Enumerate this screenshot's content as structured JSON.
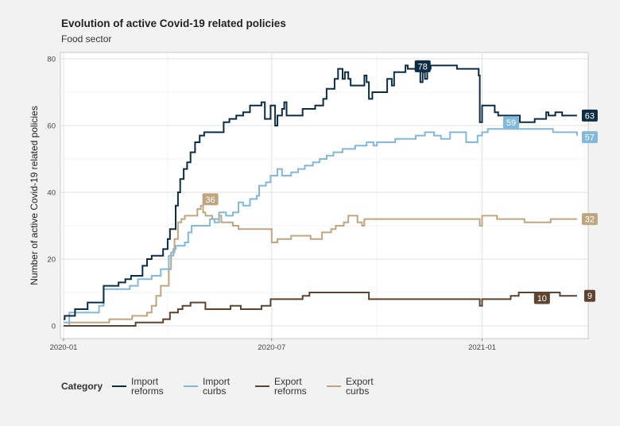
{
  "header": {
    "title": "Evolution of active Covid-19 related policies",
    "subtitle": "Food sector"
  },
  "legend": {
    "title": "Category",
    "items": [
      {
        "line1": "Import",
        "line2": "reforms",
        "color": "#0d2d45"
      },
      {
        "line1": "Import",
        "line2": "curbs",
        "color": "#82b8d9"
      },
      {
        "line1": "Export",
        "line2": "reforms",
        "color": "#5e4330"
      },
      {
        "line1": "Export",
        "line2": "curbs",
        "color": "#bfa680"
      }
    ]
  },
  "chart_data": {
    "type": "line",
    "title": "Evolution of active Covid-19 related policies",
    "subtitle": "Food sector",
    "xlabel": "",
    "ylabel": "Number of active Covid-19 related policies",
    "x_ticks": [
      "2020-01",
      "2020-07",
      "2021-01"
    ],
    "x_range": [
      "2020-01-01",
      "2021-04-01"
    ],
    "ylim": [
      0,
      80
    ],
    "y_ticks": [
      0,
      20,
      40,
      60,
      80
    ],
    "grid": true,
    "legend_position": "bottom",
    "series": [
      {
        "name": "Import reforms",
        "color": "#0d2d45",
        "points": [
          [
            "2020-01-01",
            2
          ],
          [
            "2020-01-02",
            3
          ],
          [
            "2020-01-10",
            3
          ],
          [
            "2020-01-11",
            5
          ],
          [
            "2020-01-20",
            5
          ],
          [
            "2020-01-22",
            7
          ],
          [
            "2020-02-04",
            7
          ],
          [
            "2020-02-05",
            12
          ],
          [
            "2020-02-15",
            12
          ],
          [
            "2020-02-18",
            13
          ],
          [
            "2020-02-24",
            14
          ],
          [
            "2020-02-29",
            15
          ],
          [
            "2020-03-08",
            15
          ],
          [
            "2020-03-10",
            18
          ],
          [
            "2020-03-14",
            20
          ],
          [
            "2020-03-18",
            21
          ],
          [
            "2020-03-26",
            21
          ],
          [
            "2020-03-28",
            23
          ],
          [
            "2020-04-01",
            26
          ],
          [
            "2020-04-03",
            29
          ],
          [
            "2020-04-06",
            29
          ],
          [
            "2020-04-08",
            36
          ],
          [
            "2020-04-10",
            40
          ],
          [
            "2020-04-12",
            44
          ],
          [
            "2020-04-15",
            47
          ],
          [
            "2020-04-18",
            49
          ],
          [
            "2020-04-21",
            52
          ],
          [
            "2020-04-25",
            55
          ],
          [
            "2020-04-29",
            57
          ],
          [
            "2020-05-03",
            58
          ],
          [
            "2020-05-18",
            58
          ],
          [
            "2020-05-20",
            61
          ],
          [
            "2020-05-25",
            62
          ],
          [
            "2020-05-31",
            63
          ],
          [
            "2020-06-06",
            64
          ],
          [
            "2020-06-12",
            66
          ],
          [
            "2020-06-20",
            66
          ],
          [
            "2020-06-22",
            67
          ],
          [
            "2020-06-25",
            62
          ],
          [
            "2020-06-28",
            62
          ],
          [
            "2020-06-30",
            66
          ],
          [
            "2020-07-04",
            60
          ],
          [
            "2020-07-06",
            63
          ],
          [
            "2020-07-10",
            65
          ],
          [
            "2020-07-12",
            67
          ],
          [
            "2020-07-14",
            63
          ],
          [
            "2020-07-26",
            63
          ],
          [
            "2020-07-28",
            65
          ],
          [
            "2020-08-05",
            65
          ],
          [
            "2020-08-08",
            66
          ],
          [
            "2020-08-12",
            66
          ],
          [
            "2020-08-15",
            68
          ],
          [
            "2020-08-18",
            71
          ],
          [
            "2020-08-22",
            71
          ],
          [
            "2020-08-25",
            74
          ],
          [
            "2020-08-28",
            77
          ],
          [
            "2020-09-01",
            74
          ],
          [
            "2020-09-03",
            76
          ],
          [
            "2020-09-06",
            74
          ],
          [
            "2020-09-08",
            72
          ],
          [
            "2020-09-18",
            72
          ],
          [
            "2020-09-20",
            75
          ],
          [
            "2020-09-22",
            73
          ],
          [
            "2020-09-24",
            68
          ],
          [
            "2020-09-27",
            70
          ],
          [
            "2020-10-08",
            70
          ],
          [
            "2020-10-10",
            74
          ],
          [
            "2020-10-14",
            72
          ],
          [
            "2020-10-16",
            76
          ],
          [
            "2020-10-23",
            76
          ],
          [
            "2020-10-26",
            78
          ],
          [
            "2020-10-28",
            77
          ],
          [
            "2020-11-06",
            77
          ],
          [
            "2020-11-08",
            73
          ],
          [
            "2020-11-10",
            76
          ],
          [
            "2020-11-12",
            74
          ],
          [
            "2020-11-14",
            77
          ],
          [
            "2020-11-17",
            78
          ],
          [
            "2020-12-08",
            78
          ],
          [
            "2020-12-10",
            77
          ],
          [
            "2020-12-28",
            77
          ],
          [
            "2020-12-29",
            75
          ],
          [
            "2020-12-30",
            61
          ],
          [
            "2021-01-01",
            66
          ],
          [
            "2021-01-10",
            66
          ],
          [
            "2021-01-12",
            64
          ],
          [
            "2021-01-15",
            63
          ],
          [
            "2021-02-01",
            63
          ],
          [
            "2021-02-03",
            61
          ],
          [
            "2021-02-14",
            61
          ],
          [
            "2021-02-16",
            62
          ],
          [
            "2021-02-24",
            62
          ],
          [
            "2021-02-26",
            64
          ],
          [
            "2021-02-28",
            63
          ],
          [
            "2021-03-04",
            63
          ],
          [
            "2021-03-06",
            64
          ],
          [
            "2021-03-12",
            63
          ],
          [
            "2021-03-25",
            63
          ]
        ],
        "end_label": 63
      },
      {
        "name": "Import curbs",
        "color": "#82b8d9",
        "points": [
          [
            "2020-01-01",
            1
          ],
          [
            "2020-01-04",
            1
          ],
          [
            "2020-01-06",
            4
          ],
          [
            "2020-01-28",
            4
          ],
          [
            "2020-02-01",
            6
          ],
          [
            "2020-02-05",
            11
          ],
          [
            "2020-02-26",
            11
          ],
          [
            "2020-02-28",
            12
          ],
          [
            "2020-03-04",
            12
          ],
          [
            "2020-03-06",
            14
          ],
          [
            "2020-03-16",
            14
          ],
          [
            "2020-03-18",
            15
          ],
          [
            "2020-03-24",
            15
          ],
          [
            "2020-03-26",
            17
          ],
          [
            "2020-03-28",
            17
          ],
          [
            "2020-04-02",
            21
          ],
          [
            "2020-04-06",
            23
          ],
          [
            "2020-04-08",
            24
          ],
          [
            "2020-04-16",
            25
          ],
          [
            "2020-04-19",
            28
          ],
          [
            "2020-04-22",
            30
          ],
          [
            "2020-05-06",
            30
          ],
          [
            "2020-05-08",
            32
          ],
          [
            "2020-05-12",
            31
          ],
          [
            "2020-05-16",
            34
          ],
          [
            "2020-05-22",
            33
          ],
          [
            "2020-05-28",
            34
          ],
          [
            "2020-06-02",
            37
          ],
          [
            "2020-06-06",
            36
          ],
          [
            "2020-06-12",
            38
          ],
          [
            "2020-06-18",
            39
          ],
          [
            "2020-06-20",
            42
          ],
          [
            "2020-06-26",
            43
          ],
          [
            "2020-06-30",
            45
          ],
          [
            "2020-07-06",
            47
          ],
          [
            "2020-07-10",
            45
          ],
          [
            "2020-07-18",
            46
          ],
          [
            "2020-07-24",
            47
          ],
          [
            "2020-07-30",
            48
          ],
          [
            "2020-08-06",
            49
          ],
          [
            "2020-08-12",
            50
          ],
          [
            "2020-08-18",
            51
          ],
          [
            "2020-08-24",
            52
          ],
          [
            "2020-09-01",
            53
          ],
          [
            "2020-09-12",
            54
          ],
          [
            "2020-09-22",
            55
          ],
          [
            "2020-09-28",
            54
          ],
          [
            "2020-10-01",
            55
          ],
          [
            "2020-10-14",
            55
          ],
          [
            "2020-10-17",
            56
          ],
          [
            "2020-11-01",
            56
          ],
          [
            "2020-11-04",
            57
          ],
          [
            "2020-11-10",
            57
          ],
          [
            "2020-11-12",
            58
          ],
          [
            "2020-11-20",
            57
          ],
          [
            "2020-11-26",
            56
          ],
          [
            "2020-12-04",
            58
          ],
          [
            "2020-12-16",
            58
          ],
          [
            "2020-12-18",
            55
          ],
          [
            "2020-12-26",
            55
          ],
          [
            "2020-12-28",
            57
          ],
          [
            "2021-01-01",
            58
          ],
          [
            "2021-01-06",
            59
          ],
          [
            "2021-03-01",
            59
          ],
          [
            "2021-03-04",
            58
          ],
          [
            "2021-03-22",
            58
          ],
          [
            "2021-03-25",
            57
          ]
        ],
        "end_label": 57,
        "annotation": {
          "x": "2021-01-18",
          "y": 59,
          "label": 59
        }
      },
      {
        "name": "Export reforms",
        "color": "#5e4330",
        "points": [
          [
            "2020-01-01",
            0
          ],
          [
            "2020-03-02",
            0
          ],
          [
            "2020-03-04",
            1
          ],
          [
            "2020-03-26",
            1
          ],
          [
            "2020-03-28",
            2
          ],
          [
            "2020-04-01",
            2
          ],
          [
            "2020-04-03",
            4
          ],
          [
            "2020-04-08",
            4
          ],
          [
            "2020-04-10",
            5
          ],
          [
            "2020-04-14",
            6
          ],
          [
            "2020-04-19",
            6
          ],
          [
            "2020-04-21",
            7
          ],
          [
            "2020-05-02",
            7
          ],
          [
            "2020-05-04",
            5
          ],
          [
            "2020-05-24",
            5
          ],
          [
            "2020-05-26",
            6
          ],
          [
            "2020-06-02",
            6
          ],
          [
            "2020-06-04",
            5
          ],
          [
            "2020-06-20",
            5
          ],
          [
            "2020-06-22",
            6
          ],
          [
            "2020-06-28",
            6
          ],
          [
            "2020-06-30",
            8
          ],
          [
            "2020-07-26",
            8
          ],
          [
            "2020-07-28",
            9
          ],
          [
            "2020-08-01",
            9
          ],
          [
            "2020-08-03",
            10
          ],
          [
            "2020-09-22",
            10
          ],
          [
            "2020-09-24",
            8
          ],
          [
            "2020-12-29",
            8
          ],
          [
            "2020-12-30",
            6
          ],
          [
            "2021-01-01",
            8
          ],
          [
            "2021-01-24",
            8
          ],
          [
            "2021-01-26",
            9
          ],
          [
            "2021-01-31",
            9
          ],
          [
            "2021-02-02",
            10
          ],
          [
            "2021-03-08",
            10
          ],
          [
            "2021-03-10",
            9
          ],
          [
            "2021-03-25",
            9
          ]
        ],
        "end_label": 9,
        "annotation": {
          "x": "2021-02-14",
          "y": 10,
          "label": 10
        }
      },
      {
        "name": "Export curbs",
        "color": "#bfa680",
        "points": [
          [
            "2020-01-01",
            0
          ],
          [
            "2020-01-04",
            0
          ],
          [
            "2020-01-06",
            1
          ],
          [
            "2020-02-08",
            1
          ],
          [
            "2020-02-10",
            2
          ],
          [
            "2020-02-28",
            2
          ],
          [
            "2020-03-01",
            3
          ],
          [
            "2020-03-12",
            3
          ],
          [
            "2020-03-14",
            4
          ],
          [
            "2020-03-18",
            6
          ],
          [
            "2020-03-22",
            9
          ],
          [
            "2020-03-26",
            12
          ],
          [
            "2020-03-28",
            12
          ],
          [
            "2020-04-02",
            17
          ],
          [
            "2020-04-04",
            22
          ],
          [
            "2020-04-07",
            26
          ],
          [
            "2020-04-10",
            31
          ],
          [
            "2020-04-13",
            32
          ],
          [
            "2020-04-16",
            33
          ],
          [
            "2020-04-24",
            33
          ],
          [
            "2020-04-27",
            35
          ],
          [
            "2020-04-30",
            36
          ],
          [
            "2020-05-02",
            34
          ],
          [
            "2020-05-04",
            33
          ],
          [
            "2020-05-10",
            32
          ],
          [
            "2020-05-16",
            33
          ],
          [
            "2020-05-18",
            31
          ],
          [
            "2020-05-26",
            31
          ],
          [
            "2020-05-28",
            30
          ],
          [
            "2020-06-02",
            29
          ],
          [
            "2020-06-30",
            29
          ],
          [
            "2020-07-01",
            25
          ],
          [
            "2020-07-06",
            26
          ],
          [
            "2020-07-16",
            26
          ],
          [
            "2020-07-18",
            27
          ],
          [
            "2020-08-02",
            27
          ],
          [
            "2020-08-04",
            26
          ],
          [
            "2020-08-12",
            26
          ],
          [
            "2020-08-14",
            28
          ],
          [
            "2020-08-20",
            28
          ],
          [
            "2020-08-22",
            29
          ],
          [
            "2020-08-26",
            30
          ],
          [
            "2020-09-02",
            31
          ],
          [
            "2020-09-06",
            33
          ],
          [
            "2020-09-12",
            33
          ],
          [
            "2020-09-14",
            31
          ],
          [
            "2020-09-18",
            30
          ],
          [
            "2020-09-20",
            32
          ],
          [
            "2020-12-28",
            32
          ],
          [
            "2020-12-30",
            30
          ],
          [
            "2021-01-01",
            33
          ],
          [
            "2021-01-12",
            33
          ],
          [
            "2021-01-14",
            32
          ],
          [
            "2021-02-05",
            32
          ],
          [
            "2021-02-07",
            31
          ],
          [
            "2021-02-28",
            31
          ],
          [
            "2021-03-02",
            32
          ],
          [
            "2021-03-25",
            32
          ]
        ],
        "end_label": 32,
        "annotation": {
          "x": "2020-04-30",
          "y": 36,
          "label": 36
        }
      }
    ],
    "top_annotation": {
      "series": "Import reforms",
      "x": "2020-11-10",
      "y": 78,
      "label": 78
    }
  }
}
